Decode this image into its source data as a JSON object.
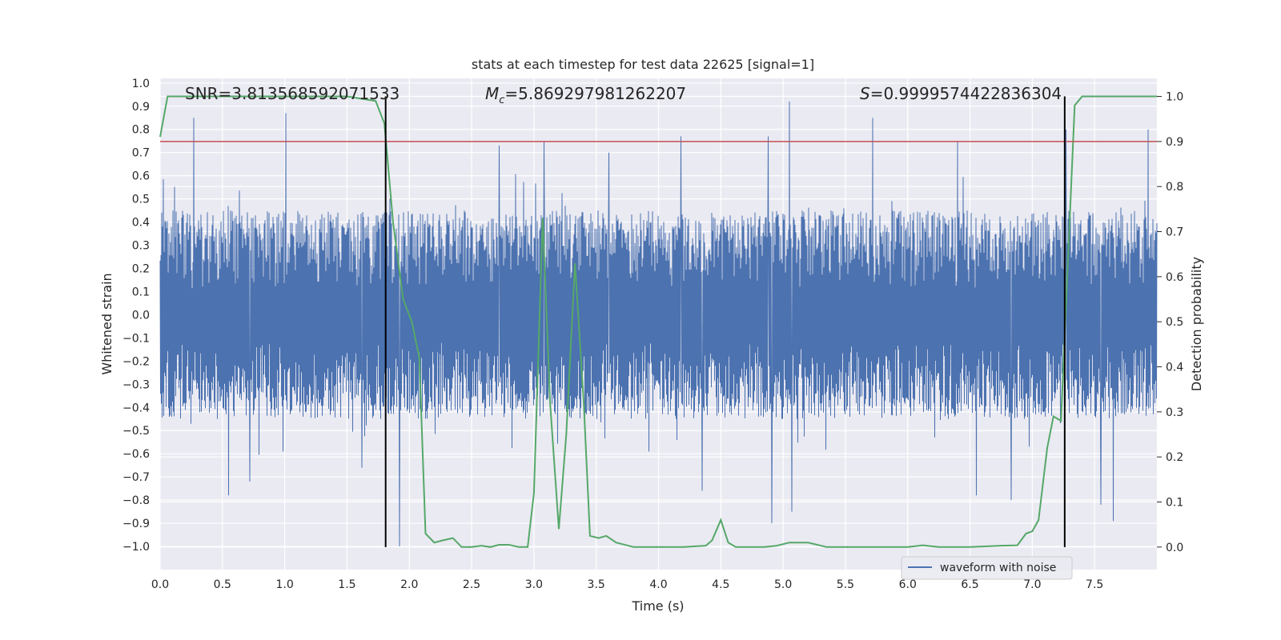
{
  "chart_data": {
    "type": "line",
    "title": "stats at each timestep for test data 22625 [signal=1]",
    "xlabel": "Time (s)",
    "ylabel": "Whitened strain",
    "ylabel_right": "Detection probability",
    "xlim": [
      0.0,
      8.0
    ],
    "ylim": [
      -1.1,
      1.02
    ],
    "ylim_right": [
      -0.05,
      1.04
    ],
    "x_ticks": [
      "0.0",
      "0.5",
      "1.0",
      "1.5",
      "2.0",
      "2.5",
      "3.0",
      "3.5",
      "4.0",
      "4.5",
      "5.0",
      "5.5",
      "6.0",
      "6.5",
      "7.0",
      "7.5"
    ],
    "y_ticks": [
      "1.0",
      "0.9",
      "0.8",
      "0.7",
      "0.6",
      "0.5",
      "0.4",
      "0.3",
      "0.2",
      "0.1",
      "0.0",
      "−0.1",
      "−0.2",
      "−0.3",
      "−0.4",
      "−0.5",
      "−0.6",
      "−0.7",
      "−0.8",
      "−0.9",
      "−1.0"
    ],
    "y_ticks_right": [
      "1.0",
      "0.9",
      "0.8",
      "0.7",
      "0.6",
      "0.5",
      "0.4",
      "0.3",
      "0.2",
      "0.1",
      "0.0"
    ],
    "grid": true,
    "legend_position": "bottom-right",
    "annotations": {
      "snr": "SNR=3.813568592071533",
      "mc_symbol": "M",
      "mc_sub": "c",
      "mc_value": "=5.869297981262207",
      "s_symbol": "S",
      "s_value": "=0.9999574422836304"
    },
    "series": [
      {
        "name": "waveform with noise",
        "axis": "left",
        "color": "#4c72b0",
        "noise_amplitude_typical": 0.45,
        "spikes": [
          [
            0.27,
            0.85
          ],
          [
            1.01,
            0.87
          ],
          [
            1.92,
            -1.0
          ],
          [
            2.72,
            0.73
          ],
          [
            4.18,
            0.77
          ],
          [
            4.35,
            -0.76
          ],
          [
            4.88,
            0.77
          ],
          [
            4.91,
            -0.9
          ],
          [
            5.05,
            0.92
          ],
          [
            5.07,
            -0.85
          ],
          [
            5.72,
            0.85
          ],
          [
            6.55,
            -0.78
          ],
          [
            6.83,
            -0.8
          ],
          [
            7.27,
            0.8
          ],
          [
            7.55,
            -0.82
          ],
          [
            7.65,
            -0.89
          ],
          [
            7.93,
            0.8
          ],
          [
            0.55,
            -0.78
          ],
          [
            0.72,
            -0.72
          ],
          [
            1.62,
            -0.66
          ],
          [
            3.08,
            0.75
          ],
          [
            3.6,
            0.7
          ],
          [
            6.4,
            0.75
          ]
        ]
      },
      {
        "name": "",
        "axis": "right",
        "color": "#55a868",
        "x": [
          0.0,
          0.06,
          0.2,
          0.5,
          1.0,
          1.5,
          1.73,
          1.8,
          1.87,
          1.95,
          2.02,
          2.08,
          2.13,
          2.2,
          2.27,
          2.35,
          2.42,
          2.5,
          2.58,
          2.65,
          2.72,
          2.8,
          2.88,
          2.95,
          3.0,
          3.07,
          3.13,
          3.2,
          3.26,
          3.33,
          3.4,
          3.45,
          3.52,
          3.58,
          3.66,
          3.8,
          4.0,
          4.2,
          4.38,
          4.43,
          4.5,
          4.56,
          4.62,
          4.7,
          4.85,
          4.95,
          5.05,
          5.12,
          5.2,
          5.35,
          5.5,
          5.8,
          6.0,
          6.12,
          6.25,
          6.5,
          6.75,
          6.88,
          6.95,
          7.0,
          7.05,
          7.12,
          7.17,
          7.23,
          7.28,
          7.34,
          7.4,
          7.5,
          8.0
        ],
        "y": [
          0.91,
          1.0,
          1.0,
          1.0,
          1.0,
          1.0,
          0.99,
          0.94,
          0.72,
          0.55,
          0.5,
          0.42,
          0.03,
          0.01,
          0.015,
          0.02,
          0.0,
          0.0,
          0.003,
          0.0,
          0.005,
          0.005,
          0.0,
          0.0,
          0.12,
          0.73,
          0.32,
          0.04,
          0.25,
          0.63,
          0.32,
          0.025,
          0.02,
          0.025,
          0.01,
          0.0,
          0.0,
          0.0,
          0.003,
          0.015,
          0.06,
          0.01,
          0.0,
          0.0,
          0.0,
          0.003,
          0.01,
          0.01,
          0.01,
          0.0,
          0.0,
          0.0,
          0.0,
          0.004,
          0.0,
          0.0,
          0.003,
          0.004,
          0.03,
          0.035,
          0.06,
          0.22,
          0.29,
          0.28,
          0.6,
          0.98,
          1.0,
          1.0,
          1.0
        ]
      }
    ],
    "threshold": {
      "value": 0.9,
      "axis": "right",
      "color": "#c44e52"
    },
    "vlines": [
      1.81,
      7.26
    ]
  }
}
